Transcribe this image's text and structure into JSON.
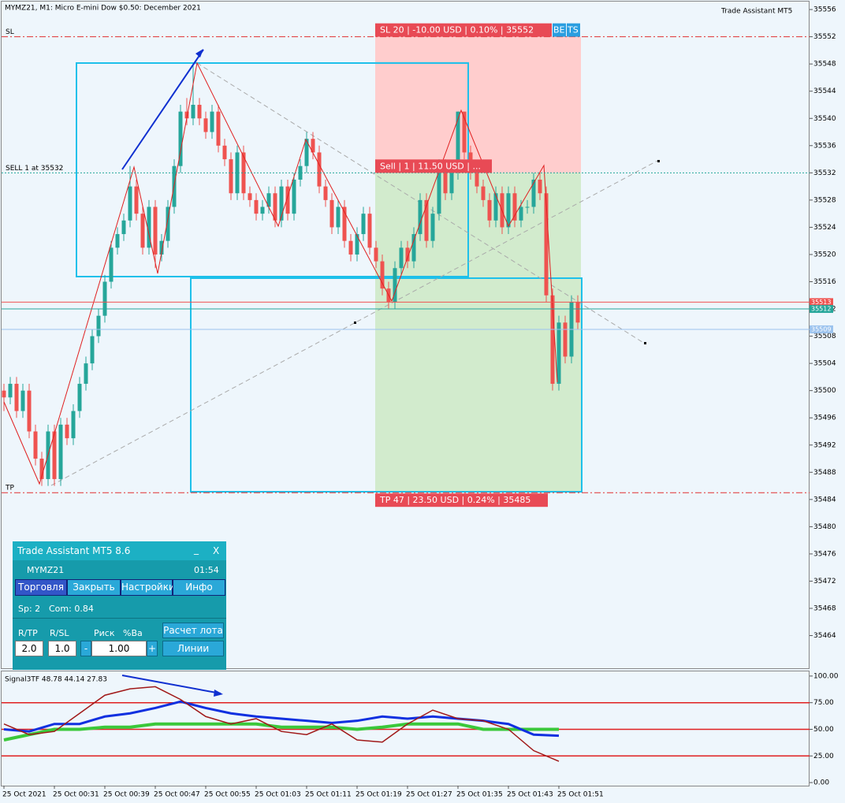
{
  "header": {
    "title": "MYMZ21, M1:  Micro E-mini Dow $0.50: December 2021",
    "indicator_name": "Trade Assistant MT5"
  },
  "chart": {
    "type": "candlestick",
    "ylim": [
      35459.2,
      35557.4
    ],
    "yticks": [
      35556,
      35552,
      35548,
      35544,
      35540,
      35536,
      35532,
      35528,
      35524,
      35520,
      35516,
      35512,
      35508,
      35504,
      35500,
      35496,
      35492,
      35488,
      35484,
      35480,
      35476,
      35472,
      35468,
      35464
    ],
    "xlabels": [
      "25 Oct 2021",
      "25 Oct 00:31",
      "25 Oct 00:39",
      "25 Oct 00:47",
      "25 Oct 00:55",
      "25 Oct 01:03",
      "25 Oct 01:11",
      "25 Oct 01:19",
      "25 Oct 01:27",
      "25 Oct 01:35",
      "25 Oct 01:43",
      "25 Oct 01:51"
    ],
    "bull_color": "#26a69a",
    "bear_color": "#ef5350",
    "candles": [
      [
        35500,
        35501,
        35497,
        35499
      ],
      [
        35499,
        35502,
        35498,
        35501
      ],
      [
        35501,
        35502,
        35496,
        35497
      ],
      [
        35497,
        35501,
        35496,
        35500
      ],
      [
        35500,
        35501,
        35493,
        35494
      ],
      [
        35494,
        35495,
        35489,
        35490
      ],
      [
        35490,
        35491,
        35486,
        35487
      ],
      [
        35487,
        35495,
        35486,
        35494
      ],
      [
        35494,
        35495,
        35486,
        35487
      ],
      [
        35487,
        35496,
        35486,
        35495
      ],
      [
        35495,
        35496,
        35492,
        35493
      ],
      [
        35493,
        35498,
        35492,
        35497
      ],
      [
        35497,
        35502,
        35496,
        35501
      ],
      [
        35501,
        35505,
        35500,
        35504
      ],
      [
        35504,
        35509,
        35503,
        35508
      ],
      [
        35508,
        35512,
        35507,
        35511
      ],
      [
        35511,
        35517,
        35510,
        35516
      ],
      [
        35516,
        35522,
        35515,
        35521
      ],
      [
        35521,
        35524,
        35520,
        35523
      ],
      [
        35523,
        35526,
        35522,
        35525
      ],
      [
        35525,
        35533,
        35524,
        35530
      ],
      [
        35530,
        35531,
        35525,
        35526
      ],
      [
        35526,
        35527,
        35520,
        35521
      ],
      [
        35521,
        35528,
        35520,
        35527
      ],
      [
        35527,
        35528,
        35518,
        35520
      ],
      [
        35520,
        35523,
        35519,
        35522
      ],
      [
        35522,
        35528,
        35521,
        35527
      ],
      [
        35527,
        35534,
        35526,
        35533
      ],
      [
        35533,
        35542,
        35532,
        35541
      ],
      [
        35541,
        35543,
        35539,
        35540
      ],
      [
        35540,
        35548,
        35539,
        35542
      ],
      [
        35542,
        35543,
        35539,
        35540
      ],
      [
        35540,
        35541,
        35537,
        35538
      ],
      [
        35538,
        35542,
        35537,
        35541
      ],
      [
        35541,
        35542,
        35535,
        35536
      ],
      [
        35536,
        35537,
        35533,
        35534
      ],
      [
        35534,
        35535,
        35528,
        35529
      ],
      [
        35529,
        35536,
        35528,
        35535
      ],
      [
        35535,
        35536,
        35528,
        35529
      ],
      [
        35529,
        35530,
        35527,
        35528
      ],
      [
        35528,
        35529,
        35525,
        35526
      ],
      [
        35526,
        35528,
        35525,
        35527
      ],
      [
        35527,
        35530,
        35526,
        35529
      ],
      [
        35529,
        35530,
        35524,
        35525
      ],
      [
        35525,
        35531,
        35524,
        35530
      ],
      [
        35530,
        35531,
        35525,
        35526
      ],
      [
        35526,
        35532,
        35525,
        35531
      ],
      [
        35531,
        35534,
        35530,
        35533
      ],
      [
        35533,
        35538,
        35532,
        35537
      ],
      [
        35537,
        35538,
        35534,
        35535
      ],
      [
        35535,
        35536,
        35529,
        35530
      ],
      [
        35530,
        35531,
        35527,
        35528
      ],
      [
        35528,
        35529,
        35523,
        35524
      ],
      [
        35524,
        35528,
        35523,
        35527
      ],
      [
        35527,
        35528,
        35521,
        35522
      ],
      [
        35522,
        35523,
        35519,
        35520
      ],
      [
        35520,
        35524,
        35519,
        35523
      ],
      [
        35523,
        35527,
        35522,
        35526
      ],
      [
        35526,
        35527,
        35520,
        35521
      ],
      [
        35521,
        35522,
        35518,
        35519
      ],
      [
        35519,
        35520,
        35514,
        35515
      ],
      [
        35515,
        35516,
        35512,
        35513
      ],
      [
        35513,
        35519,
        35512,
        35518
      ],
      [
        35518,
        35522,
        35517,
        35521
      ],
      [
        35521,
        35522,
        35518,
        35519
      ],
      [
        35519,
        35524,
        35518,
        35523
      ],
      [
        35523,
        35529,
        35522,
        35528
      ],
      [
        35528,
        35529,
        35521,
        35522
      ],
      [
        35522,
        35527,
        35521,
        35526
      ],
      [
        35526,
        35534,
        35525,
        35533
      ],
      [
        35533,
        35534,
        35528,
        35529
      ],
      [
        35529,
        35533,
        35528,
        35532
      ],
      [
        35532,
        35541,
        35531,
        35541
      ],
      [
        35541,
        35541,
        35534,
        35535
      ],
      [
        35535,
        35536,
        35531,
        35532
      ],
      [
        35532,
        35533,
        35529,
        35530
      ],
      [
        35530,
        35531,
        35527,
        35528
      ],
      [
        35528,
        35529,
        35524,
        35525
      ],
      [
        35525,
        35530,
        35524,
        35529
      ],
      [
        35529,
        35530,
        35523,
        35524
      ],
      [
        35524,
        35530,
        35523,
        35529
      ],
      [
        35529,
        35530,
        35524,
        35525
      ],
      [
        35525,
        35528,
        35524,
        35527
      ],
      [
        35527,
        35528,
        35526,
        35527
      ],
      [
        35527,
        35532,
        35526,
        35531
      ],
      [
        35531,
        35532,
        35528,
        35529
      ],
      [
        35529,
        35530,
        35513,
        35514
      ],
      [
        35514,
        35515,
        35500,
        35501
      ],
      [
        35501,
        35511,
        35500,
        35510
      ],
      [
        35510,
        35511,
        35504,
        35505
      ],
      [
        35505,
        35514,
        35504,
        35513
      ],
      [
        35513,
        35514,
        35509,
        35510
      ]
    ],
    "price_tags": [
      {
        "value": 35513,
        "color": "#ef5350"
      },
      {
        "value": 35512,
        "color": "#26a69a"
      },
      {
        "value": 35509,
        "color": "#9cc3ee"
      }
    ],
    "trade": {
      "sl": 35552,
      "entry": 35532,
      "tp": 35485,
      "sl_label": "SL",
      "entry_label": "SELL 1 at 35532",
      "tp_label": "TP",
      "sl_box": "SL 20 | -10.00 USD | 0.10% | 35552",
      "entry_box": "Sell | 1 | 11.50 USD | ...",
      "tp_box": "TP 47 | 23.50 USD | 0.24% | 35485",
      "be": "BE",
      "ts": "TS"
    }
  },
  "indicator": {
    "type": "line",
    "label": "Signal3TF 48.78 44.14 27.83",
    "ylim": [
      -2.9,
      105.1
    ],
    "yticks": [
      {
        "value": 100,
        "label": "100.00"
      },
      {
        "value": 75,
        "label": "75.00"
      },
      {
        "value": 50,
        "label": "50.00"
      },
      {
        "value": 25,
        "label": "25.00"
      },
      {
        "value": 0,
        "label": "0.00"
      }
    ],
    "levels": [
      75,
      50,
      25
    ],
    "series": [
      {
        "color": "#3ac83a",
        "values": [
          40,
          45,
          50,
          50,
          52,
          52,
          55,
          55,
          55,
          55,
          55,
          52,
          52,
          52,
          50,
          52,
          55,
          55,
          55,
          50,
          50,
          50,
          50
        ]
      },
      {
        "color": "#1030e0",
        "values": [
          50,
          48,
          55,
          55,
          62,
          65,
          70,
          76,
          70,
          65,
          62,
          60,
          58,
          56,
          58,
          62,
          60,
          62,
          60,
          58,
          55,
          45,
          44
        ]
      },
      {
        "color": "#a01818",
        "values": [
          55,
          45,
          48,
          65,
          82,
          88,
          90,
          78,
          62,
          55,
          60,
          48,
          45,
          55,
          40,
          38,
          55,
          68,
          60,
          58,
          50,
          30,
          20
        ]
      }
    ]
  },
  "panel": {
    "title": "Trade Assistant MT5 8.6",
    "minimize": "_",
    "close": "X",
    "symbol": "MYMZ21",
    "time": "01:54",
    "tabs": [
      "Торговля",
      "Закрыть",
      "Настройки",
      "Инфо"
    ],
    "spread": "Sp: 2",
    "commission": "Com: 0.84",
    "labels": [
      "R/TP",
      "R/SL",
      "Риск",
      "%Ba"
    ],
    "calc": "Расчет лота",
    "rtp": "2.0",
    "rsl": "1.0",
    "minus": "-",
    "risk": "1.00",
    "plus": "+",
    "lines": "Линии"
  }
}
